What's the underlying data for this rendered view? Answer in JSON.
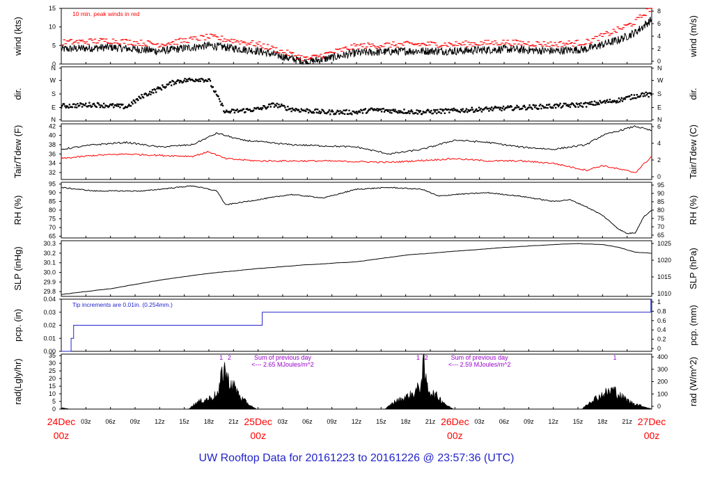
{
  "page_title": "UW Rooftop Data for 20161223  to  20161226 @ 23:57:36  (UTC)",
  "colors": {
    "primary": "#000000",
    "peak": "#ff0000",
    "dewpoint": "#ff0000",
    "precip": "#2222cc",
    "annotation": "#9900cc",
    "date_label": "#ff0000",
    "title": "#2222cc"
  },
  "time_axis": {
    "major": [
      {
        "date": "24Dec",
        "hour": "00z",
        "pos_hours": 0
      },
      {
        "date": "25Dec",
        "hour": "00z",
        "pos_hours": 24
      },
      {
        "date": "26Dec",
        "hour": "00z",
        "pos_hours": 48
      },
      {
        "date": "27Dec",
        "hour": "00z",
        "pos_hours": 72
      }
    ],
    "minor_labels": [
      "03z",
      "06z",
      "09z",
      "12z",
      "15z",
      "18z",
      "21z"
    ]
  },
  "chart_data": [
    {
      "type": "line",
      "panel": "wind",
      "ylabel_left": "wind (kts)",
      "ylabel_right": "wind (m/s)",
      "ylim": [
        0,
        15
      ],
      "yticks_left": [
        "0",
        "5",
        "10",
        "15"
      ],
      "yticks_right": [
        "0",
        "2",
        "4",
        "6",
        "8"
      ],
      "annotation": "10 min. peak winds in red",
      "series": [
        {
          "name": "wind speed",
          "x_hours": [
            0,
            6,
            12,
            18,
            24,
            30,
            36,
            42,
            48,
            54,
            60,
            64,
            68,
            70,
            72
          ],
          "values": [
            4,
            4.5,
            3.5,
            5,
            3.5,
            0.5,
            3,
            3.5,
            3.5,
            4,
            3.5,
            4,
            6.5,
            8.5,
            12
          ]
        },
        {
          "name": "10 min. peak",
          "x_hours": [
            0,
            6,
            12,
            18,
            24,
            30,
            36,
            42,
            48,
            54,
            60,
            64,
            68,
            70,
            72
          ],
          "values": [
            5.5,
            6,
            5,
            7,
            5,
            1,
            4.5,
            5,
            5,
            5.5,
            5,
            5.5,
            9,
            11,
            15
          ]
        }
      ]
    },
    {
      "type": "scatter",
      "panel": "dir",
      "ylabel_left": "dir.",
      "ylabel_right": "dir.",
      "yticks_left": [
        "N",
        "E",
        "S",
        "W",
        "N"
      ],
      "yticks_right": [
        "N",
        "E",
        "S",
        "W",
        "N"
      ],
      "series": [
        {
          "name": "wind direction (deg)",
          "x_hours": [
            0,
            4,
            8,
            10,
            14,
            17,
            18,
            20,
            24,
            26,
            28,
            32,
            36,
            38,
            44,
            48,
            54,
            60,
            64,
            68,
            71,
            72
          ],
          "values": [
            100,
            110,
            95,
            170,
            265,
            280,
            270,
            60,
            80,
            110,
            80,
            60,
            60,
            75,
            60,
            70,
            85,
            100,
            110,
            140,
            180,
            170
          ]
        }
      ]
    },
    {
      "type": "line",
      "panel": "temperature",
      "ylabel_left": "Tair/Tdew (F)",
      "ylabel_right": "Tair/Tdew (C)",
      "ylim": [
        30.5,
        42.5
      ],
      "yticks_left": [
        "32",
        "34",
        "36",
        "38",
        "40",
        "42"
      ],
      "yticks_right": [
        "0",
        "2",
        "4",
        "6"
      ],
      "series": [
        {
          "name": "Tair",
          "x_hours": [
            0,
            4,
            8,
            12,
            16,
            19,
            22,
            28,
            36,
            40,
            44,
            48,
            52,
            56,
            60,
            64,
            66,
            70,
            72
          ],
          "values": [
            37,
            38,
            38.5,
            37.5,
            38,
            40.5,
            39,
            38,
            37.5,
            36,
            37,
            39,
            38.5,
            37.5,
            37,
            38,
            40,
            42,
            41
          ]
        },
        {
          "name": "Tdew",
          "x_hours": [
            0,
            4,
            8,
            12,
            16,
            18,
            20,
            24,
            32,
            40,
            48,
            52,
            56,
            60,
            64,
            66,
            70,
            72
          ],
          "values": [
            35,
            35.7,
            36,
            35.7,
            35.5,
            36.5,
            35,
            34.5,
            34.5,
            34.2,
            35,
            34.5,
            34.5,
            34,
            32.5,
            33.5,
            32,
            35.5
          ]
        }
      ]
    },
    {
      "type": "line",
      "panel": "rh",
      "ylabel_left": "RH (%)",
      "ylabel_right": "RH (%)",
      "ylim": [
        64,
        96
      ],
      "yticks_left": [
        "65",
        "70",
        "75",
        "80",
        "85",
        "90",
        "95"
      ],
      "yticks_right": [
        "65",
        "70",
        "75",
        "80",
        "85",
        "90",
        "95"
      ],
      "series": [
        {
          "name": "RH",
          "x_hours": [
            0,
            4,
            10,
            16,
            19,
            20,
            24,
            28,
            32,
            36,
            40,
            44,
            46,
            48,
            52,
            56,
            60,
            62,
            64,
            66,
            68,
            69,
            70,
            71,
            72
          ],
          "values": [
            93,
            91,
            91,
            94,
            91,
            83,
            86,
            89,
            87,
            92,
            93,
            92,
            88,
            89,
            90,
            88,
            85,
            86,
            82,
            77,
            69,
            66.5,
            67,
            76,
            80
          ]
        }
      ]
    },
    {
      "type": "line",
      "panel": "slp",
      "ylabel_left": "SLP (inHg)",
      "ylabel_right": "SLP (hPa)",
      "ylim": [
        29.75,
        30.33
      ],
      "yticks_left": [
        "29.8",
        "29.9",
        "30.0",
        "30.1",
        "30.2",
        "30.3"
      ],
      "yticks_right": [
        "1010",
        "1015",
        "1020",
        "1025"
      ],
      "series": [
        {
          "name": "SLP",
          "x_hours": [
            0,
            6,
            12,
            18,
            24,
            30,
            36,
            42,
            48,
            54,
            60,
            63,
            66,
            68,
            70,
            72
          ],
          "values": [
            29.77,
            29.83,
            29.92,
            29.99,
            30.04,
            30.08,
            30.11,
            30.18,
            30.22,
            30.26,
            30.29,
            30.3,
            30.29,
            30.26,
            30.21,
            30.2
          ]
        }
      ]
    },
    {
      "type": "line",
      "panel": "precip",
      "ylabel_left": "pcp. (in)",
      "ylabel_right": "pcp. (mm)",
      "ylim": [
        0,
        0.04
      ],
      "yticks_left": [
        "0.00",
        "0.01",
        "0.02",
        "0.03",
        "0.04"
      ],
      "yticks_right": [
        "0",
        "0.2",
        "0.4",
        "0.6",
        "0.8",
        "1"
      ],
      "annotation": "Tip increments are 0.01in. (0.254mm.)",
      "series": [
        {
          "name": "precip",
          "x_hours": [
            0,
            1.2,
            1.2,
            1.5,
            1.5,
            24.5,
            24.5,
            71.9,
            71.9,
            72
          ],
          "values": [
            0,
            0,
            0.01,
            0.01,
            0.02,
            0.02,
            0.03,
            0.03,
            0.04,
            0.04
          ]
        }
      ]
    },
    {
      "type": "area",
      "panel": "radiation",
      "ylabel_left": "rad(Lgly/hr)",
      "ylabel_right": "rad (W/m^2)",
      "ylim": [
        0,
        36
      ],
      "yticks_left": [
        "0",
        "5",
        "10",
        "15",
        "20",
        "25",
        "30",
        "35"
      ],
      "yticks_right": [
        "0",
        "100",
        "200",
        "300",
        "400"
      ],
      "annotations": [
        {
          "text": "Sum of previous day",
          "hour": 27
        },
        {
          "text": "<--- 2.65 MJoules/m^2",
          "hour": 27
        },
        {
          "text": "Sum of previous day",
          "hour": 51
        },
        {
          "text": "<--- 2.59 MJoules/m^2",
          "hour": 51
        }
      ],
      "peak_markers": [
        {
          "text": "1",
          "hour": 19.5
        },
        {
          "text": "2",
          "hour": 20.5
        },
        {
          "text": "1",
          "hour": 43.5
        },
        {
          "text": "2",
          "hour": 44.5
        },
        {
          "text": "1",
          "hour": 67.5
        }
      ],
      "series": [
        {
          "name": "radiation",
          "x_hours": [
            0,
            0.6,
            1,
            15.5,
            16.5,
            18,
            19.2,
            19.6,
            19.9,
            20.3,
            20.8,
            21.2,
            22,
            23,
            23.8,
            39.5,
            40.5,
            42,
            43,
            43.8,
            44.2,
            44.5,
            45,
            46,
            47,
            47.8,
            63.5,
            64.5,
            66,
            67.3,
            68.2,
            69.5,
            71,
            72
          ],
          "values": [
            1,
            0.5,
            0,
            0,
            5,
            8,
            12,
            28,
            32,
            22,
            19,
            16,
            8,
            3,
            0,
            0,
            5,
            9,
            12,
            18,
            34,
            20,
            13,
            9,
            3,
            0,
            0,
            6,
            11,
            15,
            10,
            5,
            2,
            0
          ]
        }
      ]
    }
  ]
}
